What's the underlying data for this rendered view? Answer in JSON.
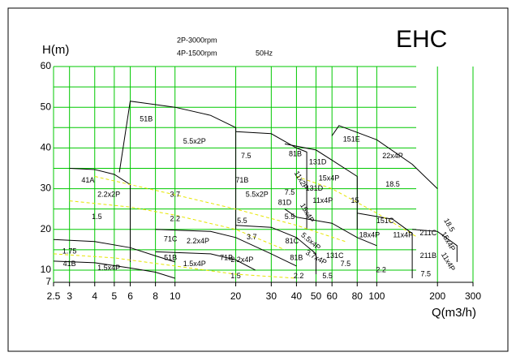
{
  "chart_data": {
    "type": "pump-curve",
    "title": "EHC",
    "subtitle_lines": [
      "2P-3000rpm",
      "4P-1500rpm"
    ],
    "frequency": "50Hz",
    "y_label": "H(m)",
    "x_label": "Q(m3/h)",
    "x_scale": "log",
    "xlim": [
      2.5,
      300
    ],
    "ylim": [
      7,
      60
    ],
    "xticks": [
      2.5,
      3,
      4,
      5,
      6,
      8,
      10,
      20,
      30,
      40,
      50,
      60,
      80,
      100,
      200,
      300
    ],
    "yticks": [
      7,
      10,
      20,
      30,
      40,
      50,
      60
    ],
    "y_minor_grid": [
      15,
      25,
      35,
      45,
      55
    ],
    "grid": true,
    "grid_color": "#00c800",
    "series": [
      {
        "color": "#000000",
        "line_style": "solid",
        "x": [
          5.3,
          6,
          10,
          15,
          20,
          20
        ],
        "values": [
          34,
          51.5,
          50,
          48,
          45,
          20
        ]
      },
      {
        "color": "#000000",
        "line_style": "solid",
        "x": [
          3,
          4,
          5,
          6,
          6
        ],
        "values": [
          35,
          34.7,
          33.5,
          31,
          12
        ]
      },
      {
        "color": "#000000",
        "line_style": "solid",
        "x": [
          20,
          30,
          40,
          45,
          45
        ],
        "values": [
          44,
          43.5,
          40,
          39,
          20
        ]
      },
      {
        "color": "#000000",
        "line_style": "solid",
        "x": [
          35,
          50,
          60,
          80,
          80
        ],
        "values": [
          41,
          39.5,
          37,
          33,
          20
        ]
      },
      {
        "color": "#000000",
        "line_style": "solid",
        "x": [
          60,
          65,
          100,
          150,
          200
        ],
        "values": [
          43,
          45.5,
          42,
          36,
          30
        ]
      },
      {
        "color": "#000000",
        "line_style": "solid",
        "x": [
          2.5,
          4,
          6,
          8,
          10
        ],
        "values": [
          17.5,
          17,
          15.5,
          13.5,
          12
        ]
      },
      {
        "color": "#000000",
        "line_style": "solid",
        "x": [
          2.5,
          4,
          6,
          8,
          10
        ],
        "values": [
          12.2,
          11.8,
          10.5,
          9.5,
          8
        ]
      },
      {
        "color": "#000000",
        "line_style": "solid",
        "x": [
          8,
          15,
          20,
          30,
          40
        ],
        "values": [
          20,
          19.5,
          18,
          14,
          11
        ]
      },
      {
        "color": "#000000",
        "line_style": "solid",
        "x": [
          8,
          15,
          20,
          25
        ],
        "values": [
          14.5,
          14,
          12.5,
          10
        ]
      },
      {
        "color": "#000000",
        "line_style": "solid",
        "x": [
          20,
          30,
          40,
          50,
          50
        ],
        "values": [
          21,
          20.5,
          18,
          14,
          9
        ]
      },
      {
        "color": "#000000",
        "line_style": "solid",
        "x": [
          35,
          40,
          60,
          80,
          100
        ],
        "values": [
          25,
          23,
          21.5,
          18,
          16
        ]
      },
      {
        "color": "#000000",
        "line_style": "solid",
        "x": [
          80,
          120,
          150,
          150
        ],
        "values": [
          24,
          22.5,
          19,
          8
        ]
      },
      {
        "color": "#000000",
        "line_style": "solid",
        "x": [
          150,
          200,
          250,
          250
        ],
        "values": [
          20,
          19.5,
          16,
          12
        ]
      },
      {
        "color": "#e6e600",
        "line_style": "dashed",
        "x": [
          4,
          6,
          10,
          20,
          40,
          70
        ],
        "values": [
          33,
          31,
          28.5,
          25,
          21,
          17
        ]
      },
      {
        "color": "#e6e600",
        "line_style": "dashed",
        "x": [
          3,
          6,
          10,
          20,
          35
        ],
        "values": [
          27,
          25.5,
          23.5,
          20,
          15
        ]
      },
      {
        "color": "#e6e600",
        "line_style": "dashed",
        "x": [
          40,
          60,
          100,
          160
        ],
        "values": [
          33,
          30,
          24,
          18
        ]
      },
      {
        "color": "#e6e600",
        "line_style": "dashed",
        "x": [
          2.5,
          5,
          10,
          20,
          40
        ],
        "values": [
          14,
          13,
          11,
          9,
          8
        ]
      }
    ],
    "annotations": [
      {
        "text": "51B",
        "x": 7.2,
        "y": 47,
        "angle": 0
      },
      {
        "text": "5.5x2P",
        "x": 12.5,
        "y": 41.5,
        "angle": 0
      },
      {
        "text": "41A",
        "x": 3.7,
        "y": 32,
        "angle": 0
      },
      {
        "text": "2.2x2P",
        "x": 4.7,
        "y": 28.5,
        "angle": 0
      },
      {
        "text": "3.7",
        "x": 10,
        "y": 28.5,
        "angle": 0
      },
      {
        "text": "1.5",
        "x": 4.1,
        "y": 23,
        "angle": 0
      },
      {
        "text": "2.2",
        "x": 10,
        "y": 22.5,
        "angle": 0
      },
      {
        "text": "1.75",
        "x": 3,
        "y": 14.5,
        "angle": 0
      },
      {
        "text": "41B",
        "x": 3,
        "y": 11.5,
        "angle": 0
      },
      {
        "text": "1.5x4P",
        "x": 4.7,
        "y": 10.5,
        "angle": 0
      },
      {
        "text": "71C",
        "x": 9.5,
        "y": 17.5,
        "angle": 0
      },
      {
        "text": "2.2x4P",
        "x": 13,
        "y": 17,
        "angle": 0
      },
      {
        "text": "51B",
        "x": 9.5,
        "y": 13,
        "angle": 0
      },
      {
        "text": "1.5x4P",
        "x": 12.5,
        "y": 11.5,
        "angle": 0
      },
      {
        "text": "71B",
        "x": 18,
        "y": 13,
        "angle": 0
      },
      {
        "text": "2.2x4P",
        "x": 21.5,
        "y": 12.5,
        "angle": 0
      },
      {
        "text": "1.5",
        "x": 20,
        "y": 8.5,
        "angle": 0
      },
      {
        "text": "7.5",
        "x": 22.5,
        "y": 38,
        "angle": 0
      },
      {
        "text": "71B",
        "x": 21.5,
        "y": 32,
        "angle": 0
      },
      {
        "text": "5.5x2P",
        "x": 25.5,
        "y": 28.5,
        "angle": 0
      },
      {
        "text": "5.5",
        "x": 21.5,
        "y": 22,
        "angle": 0
      },
      {
        "text": "3.7",
        "x": 24,
        "y": 18,
        "angle": 0
      },
      {
        "text": "81B",
        "x": 39.5,
        "y": 38.5,
        "angle": 0
      },
      {
        "text": "7.5",
        "x": 37,
        "y": 29,
        "angle": 0
      },
      {
        "text": "81D",
        "x": 35,
        "y": 26.5,
        "angle": 0
      },
      {
        "text": "5.5",
        "x": 37,
        "y": 23,
        "angle": 0
      },
      {
        "text": "81C",
        "x": 38,
        "y": 17,
        "angle": 0
      },
      {
        "text": "81B",
        "x": 40,
        "y": 13,
        "angle": 0
      },
      {
        "text": "2.2",
        "x": 41,
        "y": 8.5,
        "angle": 0
      },
      {
        "text": "11x2P",
        "x": 42,
        "y": 32,
        "angle": 60
      },
      {
        "text": "15x4P",
        "x": 45,
        "y": 24,
        "angle": 60
      },
      {
        "text": "5.5x4P",
        "x": 47,
        "y": 17,
        "angle": 40
      },
      {
        "text": "3.7x4P",
        "x": 50,
        "y": 13,
        "angle": 30
      },
      {
        "text": "131D",
        "x": 51,
        "y": 36.5,
        "angle": 0
      },
      {
        "text": "15x4P",
        "x": 58,
        "y": 32.5,
        "angle": 0
      },
      {
        "text": "131D",
        "x": 49,
        "y": 30,
        "angle": 0
      },
      {
        "text": "11x4P",
        "x": 54,
        "y": 27,
        "angle": 0
      },
      {
        "text": "15",
        "x": 78,
        "y": 27,
        "angle": 0
      },
      {
        "text": "151E",
        "x": 75,
        "y": 42,
        "angle": 0
      },
      {
        "text": "22x4P",
        "x": 120,
        "y": 38,
        "angle": 0
      },
      {
        "text": "18.5",
        "x": 120,
        "y": 31,
        "angle": 0
      },
      {
        "text": "151C",
        "x": 110,
        "y": 22,
        "angle": 0
      },
      {
        "text": "18x4P",
        "x": 92,
        "y": 18.5,
        "angle": 0
      },
      {
        "text": "11x4P",
        "x": 135,
        "y": 18.5,
        "angle": 0
      },
      {
        "text": "131C",
        "x": 62,
        "y": 13.5,
        "angle": 0
      },
      {
        "text": "7.5",
        "x": 70,
        "y": 11.5,
        "angle": 0
      },
      {
        "text": "5.5",
        "x": 57,
        "y": 8.5,
        "angle": 0
      },
      {
        "text": "2.2",
        "x": 105,
        "y": 10,
        "angle": 0
      },
      {
        "text": "7.5",
        "x": 175,
        "y": 9,
        "angle": 0
      },
      {
        "text": "211C",
        "x": 180,
        "y": 19,
        "angle": 0
      },
      {
        "text": "211B",
        "x": 180,
        "y": 13.5,
        "angle": 0
      },
      {
        "text": "18.5",
        "x": 228,
        "y": 21,
        "angle": 60
      },
      {
        "text": "15x4P",
        "x": 225,
        "y": 17,
        "angle": 60
      },
      {
        "text": "11x4P",
        "x": 225,
        "y": 12,
        "angle": 60
      }
    ]
  }
}
